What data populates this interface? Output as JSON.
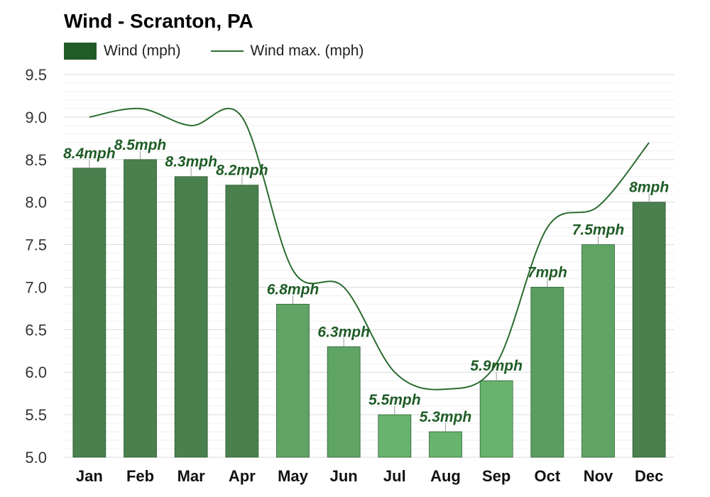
{
  "chart_data": {
    "type": "bar",
    "title": "Wind - Scranton, PA",
    "categories": [
      "Jan",
      "Feb",
      "Mar",
      "Apr",
      "May",
      "Jun",
      "Jul",
      "Aug",
      "Sep",
      "Oct",
      "Nov",
      "Dec"
    ],
    "series": [
      {
        "name": "Wind (mph)",
        "type": "bar",
        "values": [
          8.4,
          8.5,
          8.3,
          8.2,
          6.8,
          6.3,
          5.5,
          5.3,
          5.9,
          7.0,
          7.5,
          8.0
        ],
        "labels": [
          "8.4mph",
          "8.5mph",
          "8.3mph",
          "8.2mph",
          "6.8mph",
          "6.3mph",
          "5.5mph",
          "5.3mph",
          "5.9mph",
          "7mph",
          "7.5mph",
          "8mph"
        ],
        "colors": [
          "#4a7f4e",
          "#4a7f4e",
          "#4a7f4e",
          "#4a7f4e",
          "#5fa465",
          "#5fa465",
          "#68b36e",
          "#68b36e",
          "#68b36e",
          "#5b9c61",
          "#5fa465",
          "#4a7f4e"
        ]
      },
      {
        "name": "Wind max. (mph)",
        "type": "line",
        "values": [
          9.0,
          9.1,
          8.9,
          9.0,
          7.2,
          7.0,
          6.0,
          5.8,
          6.1,
          7.7,
          7.95,
          8.7
        ],
        "color": "#2a6b2f"
      }
    ],
    "ylim": [
      5.0,
      9.5
    ],
    "yticks": [
      "5.0",
      "5.5",
      "6.0",
      "6.5",
      "7.0",
      "7.5",
      "8.0",
      "8.5",
      "9.0",
      "9.5"
    ],
    "grid": true,
    "legend": "top-left",
    "label_color": "#1f5c26"
  }
}
